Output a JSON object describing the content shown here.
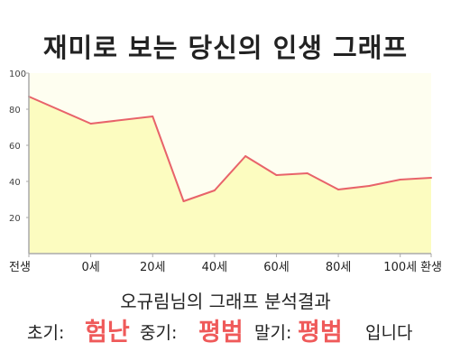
{
  "page_title": "재미로 보는 당신의 인생 그래프",
  "chart_data": {
    "type": "area",
    "x": [
      0,
      10,
      20,
      25,
      30,
      35,
      40,
      45,
      50,
      55,
      60,
      65
    ],
    "y": [
      87,
      72,
      76,
      29,
      35,
      54,
      43.5,
      44.5,
      35.5,
      37.5,
      41,
      42
    ],
    "xlim": [
      0,
      65
    ],
    "ylim": [
      0,
      100
    ],
    "yticks": [
      20,
      40,
      60,
      80,
      100
    ],
    "xtick_labels": [
      {
        "x": 0,
        "label": "전생"
      },
      {
        "x": 10,
        "label": "0세"
      },
      {
        "x": 20,
        "label": "20세"
      },
      {
        "x": 30,
        "label": "40세"
      },
      {
        "x": 40,
        "label": "60세"
      },
      {
        "x": 50,
        "label": "80세"
      },
      {
        "x": 60,
        "label": "100세"
      },
      {
        "x": 65,
        "label": "환생"
      }
    ],
    "grid": false,
    "line_color": "#e8636a",
    "fill_color": "#fcfcc0"
  },
  "analysis": {
    "title": "오규림님의 그래프 분석결과",
    "early_label": "초기:",
    "early_value": "험난",
    "mid_label": "중기:",
    "mid_value": "평범",
    "late_label": "말기:",
    "late_value": "평범",
    "suffix": "입니다"
  }
}
